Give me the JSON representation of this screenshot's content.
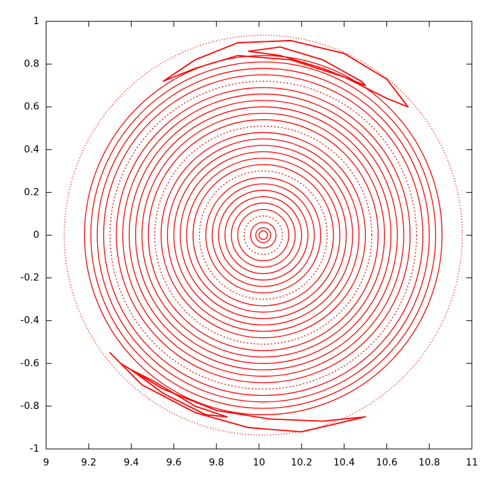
{
  "chart_data": {
    "type": "poincare",
    "xlim": [
      9,
      11
    ],
    "ylim": [
      -1,
      1
    ],
    "xticks": [
      9,
      9.2,
      9.4,
      9.6,
      9.8,
      10,
      10.2,
      10.4,
      10.6,
      10.8,
      11
    ],
    "yticks": [
      -1,
      -0.8,
      -0.6,
      -0.4,
      -0.2,
      0,
      0.2,
      0.4,
      0.6,
      0.8,
      1
    ],
    "color": "#ff0000",
    "rings": {
      "center": [
        10.02,
        0
      ],
      "radii": [
        0.02,
        0.035,
        0.06,
        0.09,
        0.12,
        0.15,
        0.18,
        0.21,
        0.24,
        0.27,
        0.3,
        0.33,
        0.36,
        0.39,
        0.42,
        0.45,
        0.48,
        0.51,
        0.54,
        0.57,
        0.6,
        0.63,
        0.66,
        0.69,
        0.72,
        0.75,
        0.78,
        0.81,
        0.84
      ],
      "boundary": 0.935
    },
    "islands": [
      {
        "x": [
          9.55,
          9.7,
          9.9,
          10.15,
          10.4,
          10.6,
          10.7,
          10.6,
          10.4,
          10.15,
          9.9,
          9.7
        ],
        "y": [
          0.72,
          0.82,
          0.9,
          0.91,
          0.85,
          0.73,
          0.6,
          0.64,
          0.74,
          0.82,
          0.84,
          0.78
        ]
      },
      {
        "x": [
          9.95,
          10.1,
          10.3,
          10.48,
          10.5,
          10.3,
          10.1
        ],
        "y": [
          0.86,
          0.88,
          0.82,
          0.72,
          0.7,
          0.78,
          0.84
        ]
      },
      {
        "x": [
          9.3,
          9.45,
          9.7,
          9.95,
          10.2,
          10.5,
          10.3,
          10.05,
          9.8,
          9.55,
          9.35
        ],
        "y": [
          -0.55,
          -0.7,
          -0.83,
          -0.9,
          -0.92,
          -0.85,
          -0.87,
          -0.86,
          -0.82,
          -0.72,
          -0.6
        ]
      },
      {
        "x": [
          9.4,
          9.55,
          9.75,
          9.85,
          9.7,
          9.5
        ],
        "y": [
          -0.63,
          -0.74,
          -0.84,
          -0.85,
          -0.8,
          -0.68
        ]
      }
    ]
  }
}
